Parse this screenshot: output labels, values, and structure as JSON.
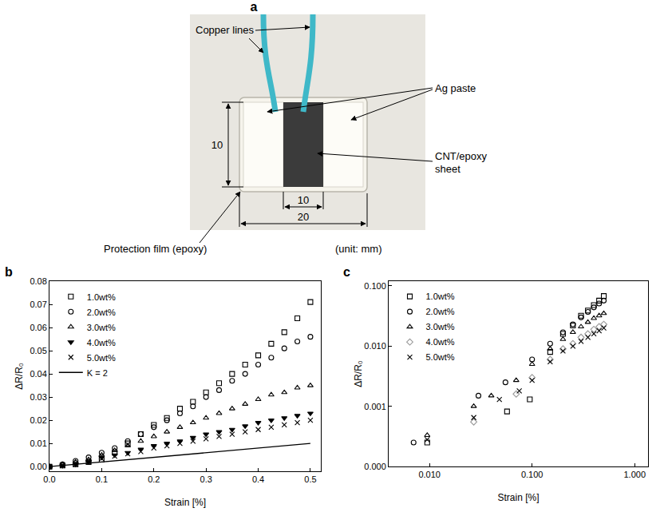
{
  "photo_panel": {
    "panel": "a",
    "labels": {
      "copper": "Copper lines",
      "ag": "Ag paste",
      "sheet": "CNT/epoxy sheet",
      "film": "Protection film (epoxy)",
      "unit": "(unit: mm)"
    },
    "dimensions": {
      "height": 10,
      "inner_width": 10,
      "outer_width": 20
    }
  },
  "chart_data": [
    {
      "panel": "b",
      "type": "scatter",
      "x_label": "Strain [%]",
      "y_label": "ΔR/R₀",
      "xlim": [
        0,
        0.52
      ],
      "ylim": [
        -0.002,
        0.08
      ],
      "xticks": [
        {
          "value": 0,
          "label": "0.0"
        },
        0.1,
        0.2,
        0.3,
        0.4,
        0.5
      ],
      "yticks": [
        {
          "value": 0,
          "label": "0.00"
        },
        0.01,
        0.02,
        0.03,
        0.04,
        0.05,
        0.06,
        0.07,
        0.08
      ],
      "grid": false,
      "legend": "top left",
      "x": [
        0,
        0.025,
        0.05,
        0.075,
        0.1,
        0.125,
        0.15,
        0.175,
        0.2,
        0.225,
        0.25,
        0.275,
        0.3,
        0.325,
        0.35,
        0.375,
        0.4,
        0.425,
        0.45,
        0.475,
        0.5
      ],
      "series": [
        {
          "name": "1.0wt%",
          "color": "#000000",
          "marker": "square-open",
          "values": [
            0,
            0.0005,
            0.001,
            0.002,
            0.003,
            0.006,
            0.01,
            0.014,
            0.018,
            0.021,
            0.025,
            0.028,
            0.032,
            0.036,
            0.04,
            0.044,
            0.048,
            0.053,
            0.058,
            0.064,
            0.071
          ]
        },
        {
          "name": "2.0wt%",
          "color": "#000000",
          "marker": "circle-open",
          "values": [
            0,
            0.001,
            0.0025,
            0.004,
            0.006,
            0.008,
            0.011,
            0.014,
            0.017,
            0.02,
            0.023,
            0.026,
            0.03,
            0.033,
            0.037,
            0.04,
            0.044,
            0.047,
            0.051,
            0.054,
            0.056
          ]
        },
        {
          "name": "3.0wt%",
          "color": "#000000",
          "marker": "triangle-up-open",
          "values": [
            0,
            0.001,
            0.002,
            0.003,
            0.005,
            0.007,
            0.009,
            0.011,
            0.013,
            0.015,
            0.017,
            0.019,
            0.021,
            0.023,
            0.025,
            0.027,
            0.029,
            0.031,
            0.032,
            0.034,
            0.035
          ]
        },
        {
          "name": "4.0wt%",
          "color": "#000000",
          "marker": "triangle-down",
          "values": [
            0,
            0.0005,
            0.001,
            0.002,
            0.004,
            0.005,
            0.006,
            0.0075,
            0.009,
            0.01,
            0.011,
            0.0125,
            0.014,
            0.015,
            0.016,
            0.0175,
            0.019,
            0.02,
            0.021,
            0.022,
            0.023
          ]
        },
        {
          "name": "5.0wt%",
          "color": "#000000",
          "marker": "x-thin",
          "values": [
            0,
            0.0005,
            0.001,
            0.002,
            0.0035,
            0.0045,
            0.0055,
            0.0065,
            0.008,
            0.009,
            0.01,
            0.011,
            0.012,
            0.013,
            0.014,
            0.015,
            0.016,
            0.017,
            0.018,
            0.019,
            0.02
          ]
        },
        {
          "name": "K = 2",
          "color": "#000000",
          "type": "line",
          "line_style": "solid",
          "x": [
            0,
            0.5
          ],
          "values": [
            0,
            0.01
          ]
        }
      ]
    },
    {
      "panel": "c",
      "type": "scatter",
      "log": true,
      "x_label": "Strain [%]",
      "y_label": "ΔR/R₀",
      "xlim": [
        0.004,
        1.35
      ],
      "ylim": [
        0.0001,
        0.12
      ],
      "xticks": [
        {
          "value": 0.01,
          "label": "0.010"
        },
        {
          "value": 0.1,
          "label": "0.100"
        },
        {
          "value": 1,
          "label": "1.000"
        }
      ],
      "yticks": [
        {
          "value": 0.0001,
          "label": "0.000"
        },
        0.001,
        {
          "value": 0.01,
          "label": "0.010"
        },
        {
          "value": 0.1,
          "label": "0.100"
        }
      ],
      "grid": false,
      "legend": "top left",
      "series": [
        {
          "name": "1.0wt%",
          "color": "#000000",
          "marker": "square-open",
          "x": [
            0.0095,
            0.057,
            0.095,
            0.15,
            0.2,
            0.25,
            0.3,
            0.35,
            0.4,
            0.45,
            0.5
          ],
          "values": [
            0.00025,
            0.00082,
            0.0013,
            0.008,
            0.016,
            0.022,
            0.032,
            0.039,
            0.048,
            0.057,
            0.068
          ]
        },
        {
          "name": "2.0wt%",
          "color": "#000000",
          "marker": "circle-open",
          "x": [
            0.007,
            0.03,
            0.055,
            0.1,
            0.15,
            0.2,
            0.25,
            0.3,
            0.35,
            0.4,
            0.45,
            0.5
          ],
          "values": [
            0.00025,
            0.0015,
            0.0025,
            0.006,
            0.011,
            0.017,
            0.023,
            0.03,
            0.037,
            0.044,
            0.051,
            0.057
          ]
        },
        {
          "name": "3.0wt%",
          "color": "#000000",
          "marker": "triangle-up-open",
          "x": [
            0.0095,
            0.027,
            0.04,
            0.07,
            0.1,
            0.15,
            0.2,
            0.25,
            0.3,
            0.35,
            0.4,
            0.45,
            0.5
          ],
          "values": [
            0.00033,
            0.001,
            0.0015,
            0.0027,
            0.005,
            0.009,
            0.013,
            0.017,
            0.021,
            0.025,
            0.029,
            0.032,
            0.035
          ]
        },
        {
          "name": "4.0wt%",
          "color": "#999999",
          "marker": "diamond-open",
          "x": [
            0.027,
            0.07,
            0.1,
            0.15,
            0.2,
            0.25,
            0.3,
            0.35,
            0.4,
            0.45,
            0.5
          ],
          "values": [
            0.00055,
            0.0016,
            0.003,
            0.006,
            0.009,
            0.011,
            0.014,
            0.016,
            0.019,
            0.021,
            0.023
          ]
        },
        {
          "name": "5.0wt%",
          "color": "#000000",
          "marker": "x-thin",
          "x": [
            0.0095,
            0.027,
            0.048,
            0.075,
            0.1,
            0.15,
            0.2,
            0.25,
            0.3,
            0.35,
            0.4,
            0.45,
            0.5
          ],
          "values": [
            0.00028,
            0.00065,
            0.0013,
            0.0018,
            0.0027,
            0.0055,
            0.0083,
            0.01,
            0.012,
            0.014,
            0.016,
            0.018,
            0.02
          ]
        }
      ]
    }
  ]
}
